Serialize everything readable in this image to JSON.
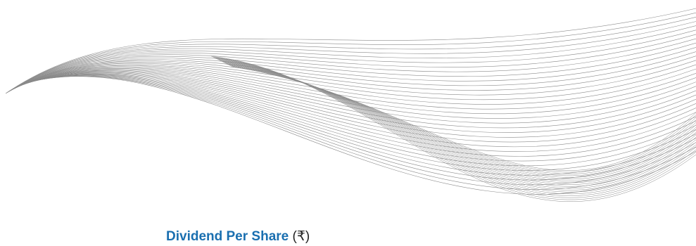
{
  "caption": {
    "title": "Dividend Per Share",
    "unit": "(₹)"
  },
  "colors": {
    "title": "#1a6fb0",
    "unit": "#222222",
    "wave_lines": "#8a8a8a",
    "background": "#ffffff"
  }
}
